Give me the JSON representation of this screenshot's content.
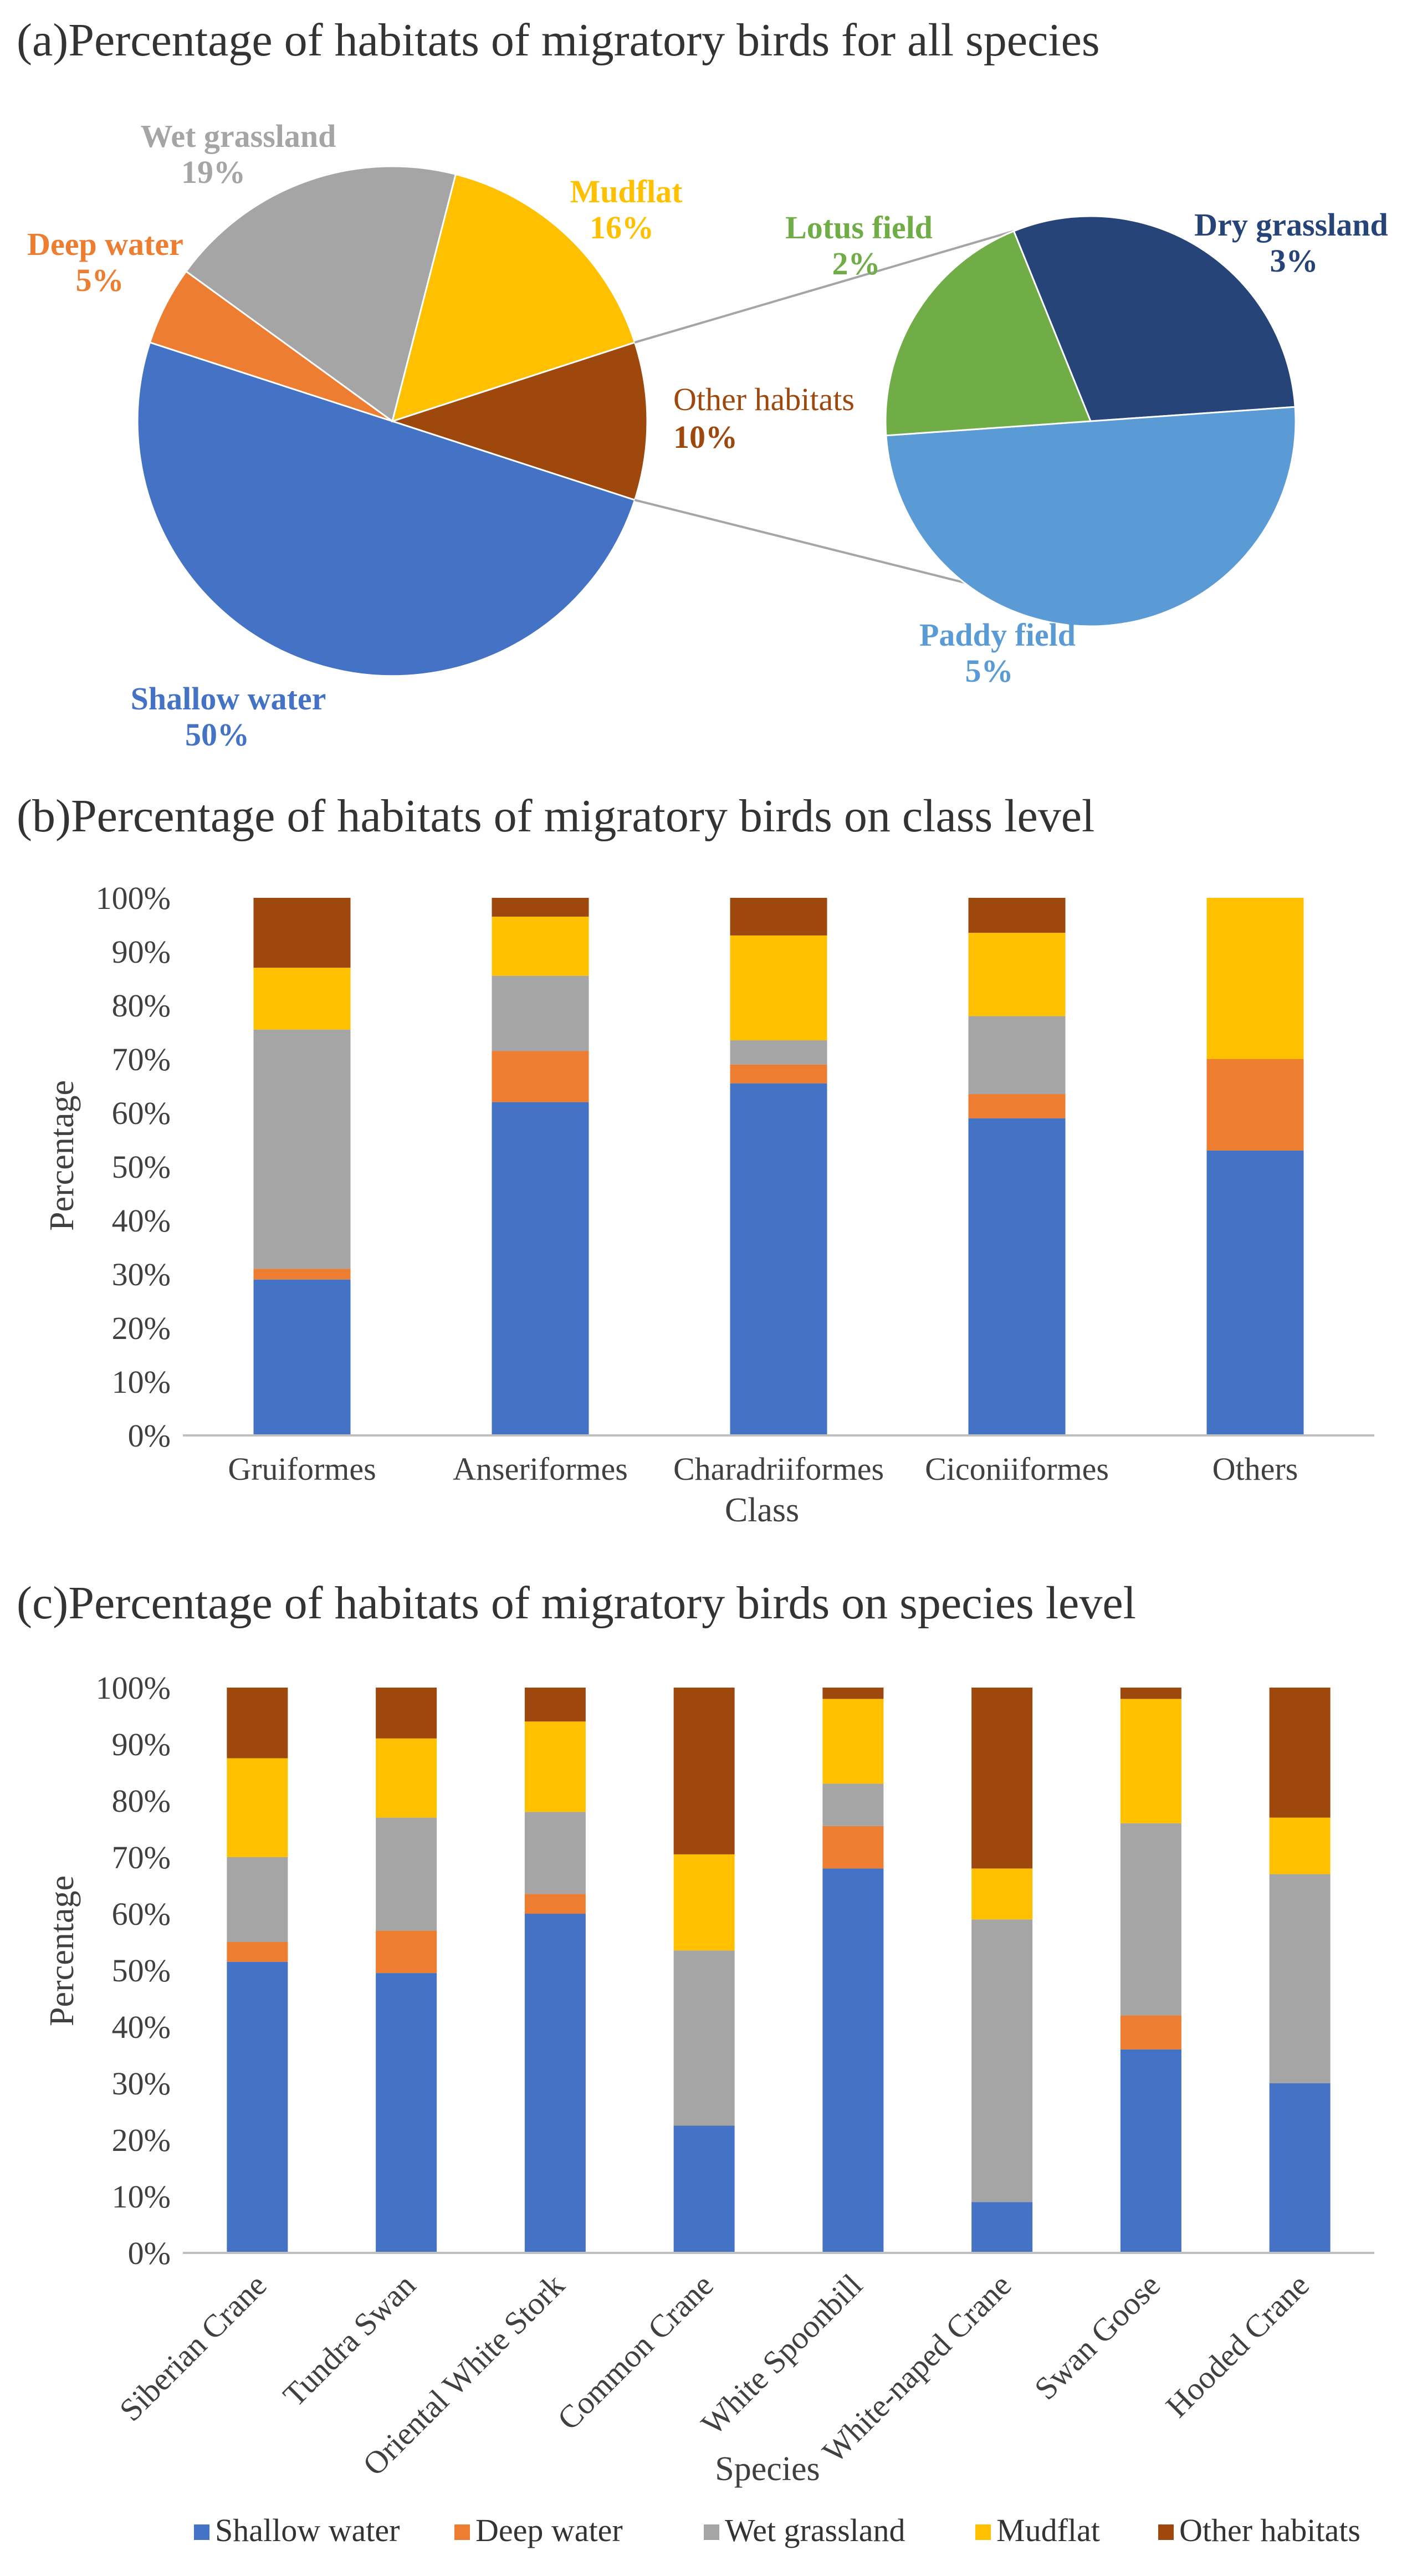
{
  "colors": {
    "shallow_water": "#4472C4",
    "deep_water": "#ED7D31",
    "wet_grassland": "#A5A5A5",
    "mudflat": "#FFC000",
    "other_habitats": "#9E480E",
    "lotus_field": "#70AD47",
    "dry_grassland": "#264478",
    "paddy_field": "#5B9BD5"
  },
  "legend": [
    "Shallow water",
    "Deep water",
    "Wet grassland",
    "Mudflat",
    "Other habitats"
  ],
  "chart_data": [
    {
      "type": "pie",
      "title": "(a)Percentage of habitats of migratory birds for all species",
      "slices": [
        {
          "name": "Shallow water",
          "value": 50,
          "label": "Shallow water",
          "pct": "50%"
        },
        {
          "name": "Deep water",
          "value": 5,
          "label": "Deep water",
          "pct": "5%"
        },
        {
          "name": "Wet grassland",
          "value": 19,
          "label": "Wet grassland",
          "pct": "19%"
        },
        {
          "name": "Mudflat",
          "value": 16,
          "label": "Mudflat",
          "pct": "16%"
        },
        {
          "name": "Other habitats",
          "value": 10,
          "label": "Other habitats",
          "pct": "10%"
        }
      ],
      "breakdown": {
        "of": "Other habitats",
        "slices": [
          {
            "name": "Dry grassland",
            "value": 3,
            "label": "Dry grassland",
            "pct": "3%"
          },
          {
            "name": "Paddy field",
            "value": 5,
            "label": "Paddy field",
            "pct": "5%"
          },
          {
            "name": "Lotus field",
            "value": 2,
            "label": "Lotus field",
            "pct": "2%"
          }
        ]
      }
    },
    {
      "type": "bar",
      "stacked": true,
      "title": "(b)Percentage of habitats of migratory birds on class level",
      "xlabel": "Class",
      "ylabel": "Percentage",
      "ylim": [
        0,
        100
      ],
      "yticks": [
        "0%",
        "10%",
        "20%",
        "30%",
        "40%",
        "50%",
        "60%",
        "70%",
        "80%",
        "90%",
        "100%"
      ],
      "categories": [
        "Gruiformes",
        "Anseriformes",
        "Charadriiformes",
        "Ciconiiformes",
        "Others"
      ],
      "series": [
        {
          "name": "Shallow water",
          "values": [
            29,
            62,
            65.5,
            59,
            53
          ]
        },
        {
          "name": "Deep water",
          "values": [
            2,
            9.5,
            3.5,
            4.5,
            17
          ]
        },
        {
          "name": "Wet grassland",
          "values": [
            44.5,
            14,
            4.5,
            14.5,
            0
          ]
        },
        {
          "name": "Mudflat",
          "values": [
            11.5,
            11,
            19.5,
            15.5,
            30
          ]
        },
        {
          "name": "Other habitats",
          "values": [
            13,
            3.5,
            7,
            6.5,
            0
          ]
        }
      ]
    },
    {
      "type": "bar",
      "stacked": true,
      "title": "(c)Percentage of habitats of migratory birds on species level",
      "xlabel": "Species",
      "ylabel": "Percentage",
      "ylim": [
        0,
        100
      ],
      "yticks": [
        "0%",
        "10%",
        "20%",
        "30%",
        "40%",
        "50%",
        "60%",
        "70%",
        "80%",
        "90%",
        "100%"
      ],
      "categories": [
        "Siberian Crane",
        "Tundra Swan",
        "Oriental White Stork",
        "Common Crane",
        "White Spoonbill",
        "White-naped Crane",
        "Swan Goose",
        "Hooded Crane"
      ],
      "series": [
        {
          "name": "Shallow water",
          "values": [
            51.5,
            49.5,
            60,
            22.5,
            68,
            9,
            36,
            30
          ]
        },
        {
          "name": "Deep water",
          "values": [
            3.5,
            7.5,
            3.5,
            0,
            7.5,
            0,
            6,
            0
          ]
        },
        {
          "name": "Wet grassland",
          "values": [
            15,
            20,
            14.5,
            31,
            7.5,
            50,
            34,
            37
          ]
        },
        {
          "name": "Mudflat",
          "values": [
            17.5,
            14,
            16,
            17,
            15,
            9,
            22,
            10
          ]
        },
        {
          "name": "Other habitats",
          "values": [
            12.5,
            9,
            6,
            29.5,
            2,
            32,
            2,
            23
          ]
        }
      ]
    }
  ]
}
